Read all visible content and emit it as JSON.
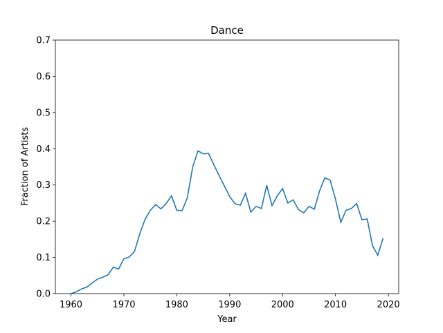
{
  "chart_data": {
    "type": "line",
    "title": "Dance",
    "xlabel": "Year",
    "ylabel": "Fraction of Artists",
    "x": [
      1960,
      1961,
      1962,
      1963,
      1964,
      1965,
      1966,
      1967,
      1968,
      1969,
      1970,
      1971,
      1972,
      1973,
      1974,
      1975,
      1976,
      1977,
      1978,
      1979,
      1980,
      1981,
      1982,
      1983,
      1984,
      1985,
      1986,
      1987,
      1988,
      1989,
      1990,
      1991,
      1992,
      1993,
      1994,
      1995,
      1996,
      1997,
      1998,
      1999,
      2000,
      2001,
      2002,
      2003,
      2004,
      2005,
      2006,
      2007,
      2008,
      2009,
      2010,
      2011,
      2012,
      2013,
      2014,
      2015,
      2016,
      2017,
      2018,
      2019
    ],
    "series": [
      {
        "color": "#1f77b4",
        "values": [
          0.0,
          0.005,
          0.013,
          0.018,
          0.029,
          0.04,
          0.045,
          0.052,
          0.073,
          0.068,
          0.096,
          0.101,
          0.116,
          0.165,
          0.205,
          0.23,
          0.246,
          0.234,
          0.249,
          0.27,
          0.23,
          0.229,
          0.265,
          0.349,
          0.394,
          0.386,
          0.387,
          0.356,
          0.326,
          0.297,
          0.268,
          0.248,
          0.244,
          0.277,
          0.225,
          0.241,
          0.235,
          0.299,
          0.243,
          0.27,
          0.29,
          0.25,
          0.259,
          0.232,
          0.223,
          0.241,
          0.233,
          0.284,
          0.32,
          0.313,
          0.261,
          0.197,
          0.23,
          0.235,
          0.249,
          0.204,
          0.206,
          0.132,
          0.106,
          0.153
        ]
      }
    ],
    "xlim": [
      1957.05,
      2021.95
    ],
    "xticks": [
      1960,
      1970,
      1980,
      1990,
      2000,
      2010,
      2020
    ],
    "ylim": [
      0,
      0.7
    ],
    "yticks": [
      {
        "value": 0,
        "label": "0.0"
      },
      0.1,
      0.2,
      0.3,
      0.4,
      0.5,
      0.6,
      0.7
    ]
  }
}
